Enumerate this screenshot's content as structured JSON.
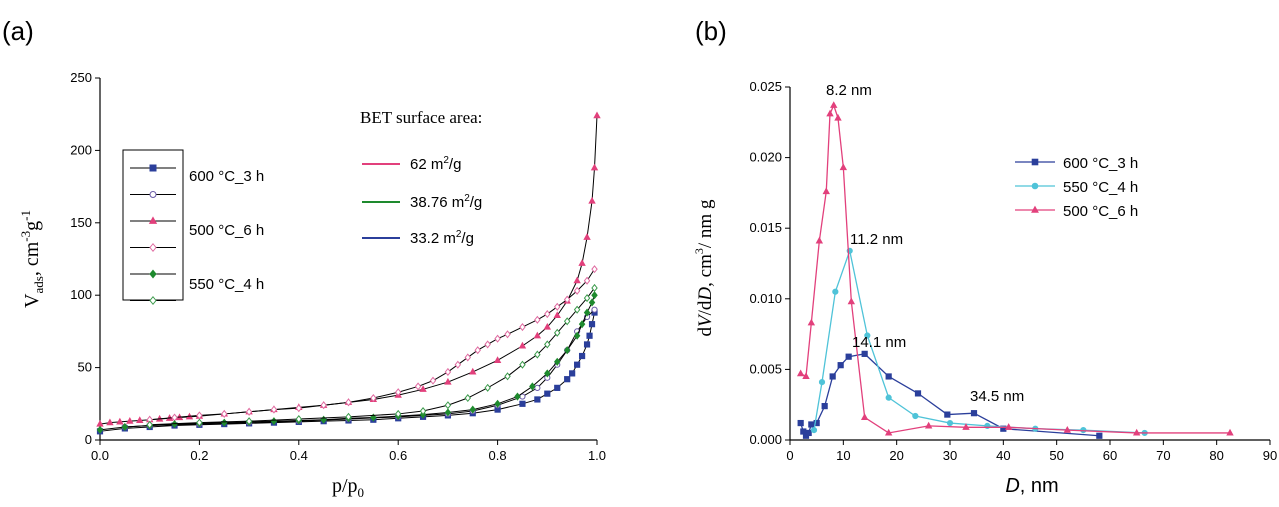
{
  "panel_labels": {
    "a": "(a)",
    "b": "(b)"
  },
  "chart_data": [
    {
      "type": "line",
      "panel": "(a)",
      "xlabel": "p/p",
      "xlabel_sub": "0",
      "ylabel": "V",
      "ylabel_sub": "ads",
      "ylabel_unit": ", cm",
      "ylabel_sup1": "-3",
      "ylabel_mid": "g",
      "ylabel_sup2": "-1",
      "xlim": [
        0,
        1.0
      ],
      "ylim": [
        0,
        250
      ],
      "xticks": [
        "0.0",
        "0.2",
        "0.4",
        "0.6",
        "0.8",
        "1.0"
      ],
      "yticks": [
        "0",
        "50",
        "100",
        "150",
        "200",
        "250"
      ],
      "legend": [
        {
          "name": "600 °C_3 h",
          "marker": "square",
          "filled": true,
          "color": "#2b3f9b"
        },
        {
          "name": "",
          "marker": "circle",
          "filled": false,
          "color": "#6a5aa8"
        },
        {
          "name": "500 °C_6 h",
          "marker": "triangle",
          "filled": true,
          "color": "#e2407c"
        },
        {
          "name": "",
          "marker": "diamond",
          "filled": false,
          "color": "#e06aa0"
        },
        {
          "name": "550 °C_4 h",
          "marker": "diamond",
          "filled": true,
          "color": "#1e8a2e"
        },
        {
          "name": "",
          "marker": "diamond",
          "filled": false,
          "color": "#3a9a4a"
        }
      ],
      "bet_title": "BET surface area:",
      "bet_entries": [
        {
          "value": "62 m",
          "sup": "2",
          "unit": "/g",
          "color": "#e2407c"
        },
        {
          "value": "38.76 m",
          "sup": "2",
          "unit": "/g",
          "color": "#1e8a2e"
        },
        {
          "value": "33.2 m",
          "sup": "2",
          "unit": "/g",
          "color": "#2b3f9b"
        }
      ],
      "series": [
        {
          "name": "600 °C_3 h adsorption",
          "color": "#2b3f9b",
          "marker": "square",
          "filled": true,
          "x": [
            0.0,
            0.05,
            0.1,
            0.15,
            0.2,
            0.25,
            0.3,
            0.35,
            0.4,
            0.45,
            0.5,
            0.55,
            0.6,
            0.65,
            0.7,
            0.75,
            0.8,
            0.85,
            0.88,
            0.9,
            0.92,
            0.94,
            0.95,
            0.96,
            0.97,
            0.98,
            0.985,
            0.99,
            0.995
          ],
          "y": [
            6,
            8,
            9,
            10,
            10.5,
            11,
            11.5,
            12,
            12.5,
            13,
            13.5,
            14,
            15,
            16,
            17,
            18.5,
            21,
            25,
            28,
            32,
            36,
            42,
            46,
            52,
            58,
            66,
            72,
            80,
            88
          ]
        },
        {
          "name": "600 °C_3 h desorption",
          "color": "#6a5aa8",
          "marker": "circle",
          "filled": false,
          "x": [
            0.995,
            0.98,
            0.96,
            0.94,
            0.92,
            0.9,
            0.88,
            0.85,
            0.8,
            0.75,
            0.7,
            0.6,
            0.5,
            0.4,
            0.3,
            0.2,
            0.1,
            0.05
          ],
          "y": [
            90,
            85,
            75,
            62,
            52,
            43,
            36,
            30,
            24,
            20,
            18,
            16,
            14.5,
            13,
            12,
            11,
            10,
            9
          ]
        },
        {
          "name": "500 °C_6 h adsorption",
          "color": "#e2407c",
          "marker": "triangle",
          "filled": true,
          "x": [
            0.0,
            0.02,
            0.04,
            0.06,
            0.08,
            0.1,
            0.12,
            0.14,
            0.16,
            0.18,
            0.2,
            0.25,
            0.3,
            0.35,
            0.4,
            0.45,
            0.5,
            0.55,
            0.6,
            0.65,
            0.7,
            0.75,
            0.8,
            0.85,
            0.88,
            0.9,
            0.92,
            0.94,
            0.96,
            0.97,
            0.98,
            0.99,
            0.995,
            1.0
          ],
          "y": [
            11,
            12,
            12.5,
            13,
            13.5,
            14,
            14.5,
            15,
            15.5,
            16,
            16.5,
            18,
            19.5,
            21,
            22.5,
            24,
            26,
            28,
            31,
            35,
            40,
            47,
            55,
            65,
            72,
            78,
            86,
            96,
            110,
            122,
            140,
            165,
            188,
            224
          ]
        },
        {
          "name": "500 °C_6 h desorption",
          "color": "#e06aa0",
          "marker": "diamond",
          "filled": false,
          "x": [
            0.995,
            0.98,
            0.96,
            0.94,
            0.92,
            0.9,
            0.88,
            0.85,
            0.82,
            0.8,
            0.78,
            0.76,
            0.74,
            0.72,
            0.7,
            0.67,
            0.64,
            0.6,
            0.55,
            0.5,
            0.45,
            0.4,
            0.35,
            0.3,
            0.25,
            0.2,
            0.15,
            0.1
          ],
          "y": [
            118,
            110,
            103,
            97,
            92,
            87,
            83,
            78,
            73,
            70,
            66,
            62,
            57,
            52,
            47,
            41,
            37,
            33,
            29,
            26,
            24,
            22,
            21,
            19.5,
            18,
            17,
            15.5,
            14
          ]
        },
        {
          "name": "550 °C_4 h adsorption",
          "color": "#1e8a2e",
          "marker": "diamond",
          "filled": true,
          "x": [
            0.0,
            0.05,
            0.1,
            0.15,
            0.2,
            0.25,
            0.3,
            0.35,
            0.4,
            0.45,
            0.5,
            0.55,
            0.6,
            0.65,
            0.7,
            0.75,
            0.8,
            0.84,
            0.87,
            0.9,
            0.92,
            0.94,
            0.96,
            0.97,
            0.98,
            0.99,
            0.995
          ],
          "y": [
            7,
            9,
            10,
            11,
            11.5,
            12,
            12.5,
            13,
            13.5,
            14,
            15,
            15.5,
            16.5,
            17.5,
            19,
            21,
            25,
            30,
            37,
            46,
            54,
            62,
            72,
            80,
            88,
            95,
            100
          ]
        },
        {
          "name": "550 °C_4 h desorption",
          "color": "#3a9a4a",
          "marker": "diamond",
          "filled": false,
          "x": [
            0.995,
            0.98,
            0.96,
            0.94,
            0.92,
            0.9,
            0.88,
            0.85,
            0.82,
            0.78,
            0.74,
            0.7,
            0.65,
            0.6,
            0.5,
            0.4,
            0.3,
            0.2,
            0.1
          ],
          "y": [
            105,
            98,
            90,
            82,
            74,
            66,
            59,
            52,
            44,
            36,
            29,
            24,
            20,
            18,
            16,
            14.5,
            13,
            12,
            10.5
          ]
        }
      ]
    },
    {
      "type": "line",
      "panel": "(b)",
      "xlabel": "D",
      "xlabel_unit": ", nm",
      "ylabel_a": "d",
      "ylabel_b": "V",
      "ylabel_c": "/d",
      "ylabel_d": "D",
      "ylabel_e": ", cm",
      "ylabel_sup": "3",
      "ylabel_f": "/ nm g",
      "xlim": [
        0,
        90
      ],
      "ylim": [
        0,
        0.025
      ],
      "xticks": [
        "0",
        "10",
        "20",
        "30",
        "40",
        "50",
        "60",
        "70",
        "80",
        "90"
      ],
      "yticks": [
        "0.000",
        "0.005",
        "0.010",
        "0.015",
        "0.020",
        "0.025"
      ],
      "annotations": [
        "8.2 nm",
        "11.2 nm",
        "14.1 nm",
        "34.5 nm"
      ],
      "series": [
        {
          "name": "600 °C_3 h",
          "color": "#2b3f9b",
          "marker": "square",
          "x": [
            2,
            2.5,
            3,
            3.5,
            4,
            5,
            6.5,
            8,
            9.5,
            11,
            14,
            18.5,
            24,
            29.5,
            34.5,
            40,
            58
          ],
          "y": [
            0.0012,
            0.0006,
            0.0003,
            0.0005,
            0.0011,
            0.0012,
            0.0024,
            0.0045,
            0.0053,
            0.0059,
            0.0061,
            0.0045,
            0.0033,
            0.0018,
            0.0019,
            0.0008,
            0.0003
          ]
        },
        {
          "name": "550 °C_4 h",
          "color": "#4fc3d8",
          "marker": "circle",
          "x": [
            4.5,
            6,
            8.5,
            11.2,
            14.5,
            18.5,
            23.5,
            30,
            37,
            46,
            55,
            66.5
          ],
          "y": [
            0.0007,
            0.0041,
            0.0105,
            0.0134,
            0.0074,
            0.003,
            0.0017,
            0.0012,
            0.001,
            0.0008,
            0.0007,
            0.0005
          ]
        },
        {
          "name": "500 °C_6 h",
          "color": "#e2407c",
          "marker": "triangle",
          "x": [
            2,
            3,
            4,
            5.5,
            6.8,
            7.5,
            8.2,
            9,
            10,
            11.5,
            14,
            18.5,
            26,
            33,
            41,
            52,
            65,
            82.5
          ],
          "y": [
            0.0047,
            0.0045,
            0.0083,
            0.0141,
            0.0176,
            0.0231,
            0.0237,
            0.0228,
            0.0193,
            0.0098,
            0.0016,
            0.0005,
            0.001,
            0.0009,
            0.0009,
            0.0007,
            0.0005,
            0.0005
          ]
        }
      ]
    }
  ]
}
